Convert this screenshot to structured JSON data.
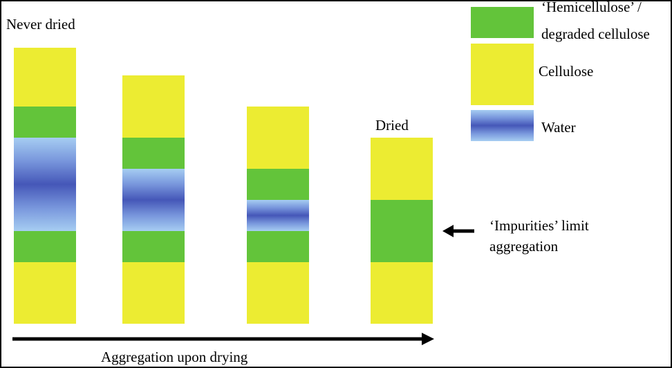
{
  "labels": {
    "never_dried": "Never dried",
    "dried": "Dried",
    "impurities_line1": "‘Impurities’ limit",
    "impurities_line2": "aggregation",
    "axis": "Aggregation upon drying"
  },
  "legend": {
    "items": [
      {
        "key": "hemicellulose",
        "line1": "‘Hemicellulose’ /",
        "line2": "degraded cellulose",
        "color": "#63c43a"
      },
      {
        "key": "cellulose",
        "line1": "Cellulose",
        "color": "#ecec32"
      },
      {
        "key": "water",
        "line1": "Water",
        "color": "#4557b8"
      }
    ]
  },
  "colors": {
    "cellulose": "#ecec32",
    "hemicellulose": "#63c43a",
    "water_dark": "#4557b8",
    "water_light": "#a6cdf2"
  }
}
